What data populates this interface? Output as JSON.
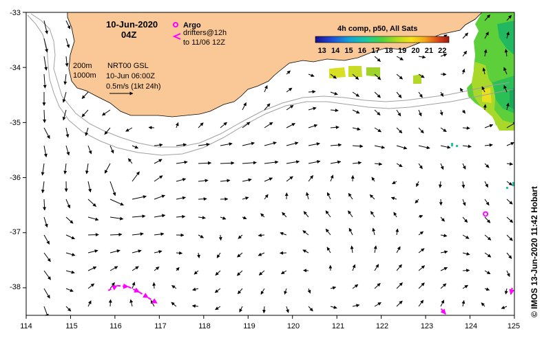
{
  "header": {
    "date": "10-Jun-2020",
    "time": "04Z"
  },
  "legend": {
    "argo_label": "Argo",
    "drifter_label": "drifters@12h",
    "drifter_range": "to 11/06 12Z",
    "isobath_200": "200m",
    "isobath_1000": "1000m",
    "product": "NRT00 GSL",
    "product_time": "10-Jun 06:00Z",
    "scale_text": "0.5m/s (1kt 24h)",
    "scale_speed_ms": 0.5
  },
  "colorbar": {
    "title": "4h comp, p50, All Sats",
    "ticks": [
      "13",
      "14",
      "15",
      "16",
      "17",
      "18",
      "19",
      "20",
      "21",
      "22"
    ],
    "min": 12.5,
    "max": 22.5
  },
  "axes": {
    "x_ticks": [
      "114",
      "115",
      "116",
      "117",
      "118",
      "119",
      "120",
      "121",
      "122",
      "123",
      "124",
      "125"
    ],
    "y_ticks": [
      "-33",
      "-34",
      "-35",
      "-36",
      "-37",
      "-38"
    ],
    "lon_range": [
      114,
      125
    ],
    "lat_range": [
      -38.5,
      -33
    ]
  },
  "credit": "© IMOS 13-Jun-2020 11:42 Hobart",
  "colors": {
    "land": "#f9c896",
    "argo": "#ff00ff",
    "drifter": "#ff00ff",
    "isobath": "#a0a0a0"
  },
  "argo_floats": [
    {
      "lon": 124.35,
      "lat": -36.66
    }
  ],
  "drifter_tracks": [
    {
      "points": [
        [
          115.85,
          -38.05
        ],
        [
          116.05,
          -37.96
        ],
        [
          116.3,
          -37.98
        ],
        [
          116.55,
          -38.08
        ],
        [
          116.75,
          -38.18
        ],
        [
          116.95,
          -38.28
        ]
      ]
    },
    {
      "points": [
        [
          123.35,
          -38.38
        ],
        [
          123.45,
          -38.48
        ]
      ]
    },
    {
      "points": [
        [
          124.95,
          -38.0
        ],
        [
          124.92,
          -38.12
        ]
      ]
    }
  ]
}
